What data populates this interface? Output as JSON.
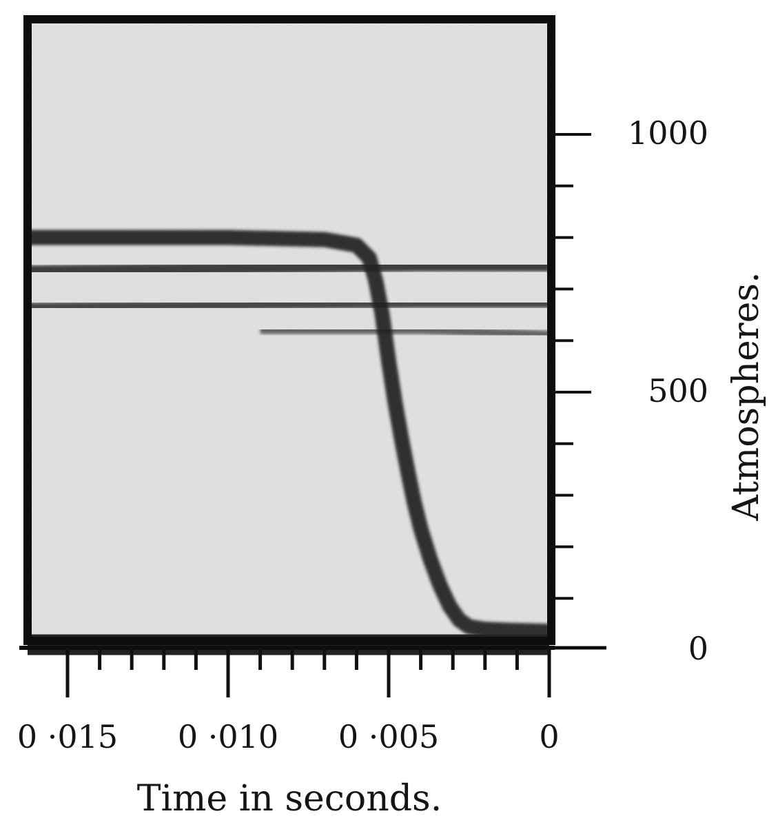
{
  "chart_data": {
    "type": "line",
    "xlabel": "Time in seconds.",
    "ylabel": "Atmospheres.",
    "x_axis": {
      "range": [
        0.0165,
        0
      ],
      "reversed": true,
      "major_ticks": [
        0.015,
        0.01,
        0.005,
        0
      ],
      "major_tick_labels": [
        "0 ·015",
        "0 ·010",
        "0 ·005",
        "0"
      ],
      "minor_tick_step": 0.001
    },
    "y_axis": {
      "range": [
        0,
        1150
      ],
      "major_ticks": [
        0,
        500,
        1000
      ],
      "major_tick_labels": [
        "0",
        "500",
        "1000"
      ],
      "minor_tick_step": 100,
      "position": "right"
    },
    "grid": false,
    "legend": "none",
    "colors": {
      "background": "#e4e4e4",
      "trace": "#222222",
      "frame": "#0d0d0d"
    },
    "series": [
      {
        "points": [
          [
            0.0165,
            800
          ],
          [
            0.01,
            800
          ],
          [
            0.007,
            796
          ],
          [
            0.006,
            785
          ],
          [
            0.0056,
            760
          ],
          [
            0.0054,
            715
          ],
          [
            0.0052,
            650
          ],
          [
            0.005,
            560
          ],
          [
            0.0048,
            480
          ],
          [
            0.0046,
            410
          ],
          [
            0.0044,
            345
          ],
          [
            0.0042,
            285
          ],
          [
            0.004,
            235
          ],
          [
            0.0037,
            175
          ],
          [
            0.0034,
            125
          ],
          [
            0.0031,
            85
          ],
          [
            0.0028,
            58
          ],
          [
            0.0025,
            45
          ],
          [
            0.002,
            40
          ],
          [
            0.0012,
            38
          ],
          [
            0,
            36
          ]
        ]
      },
      {
        "points": [
          [
            0.0165,
            735
          ],
          [
            0.008,
            742
          ],
          [
            0.004,
            745
          ],
          [
            0,
            745
          ]
        ]
      },
      {
        "points": [
          [
            0.0165,
            665
          ],
          [
            0.008,
            670
          ],
          [
            0.004,
            672
          ],
          [
            0,
            672
          ]
        ]
      },
      {
        "points": [
          [
            0.009,
            620
          ],
          [
            0.004,
            620
          ],
          [
            0,
            612
          ]
        ]
      },
      {
        "points": [
          [
            0.0165,
            10
          ],
          [
            0,
            10
          ]
        ]
      }
    ]
  }
}
